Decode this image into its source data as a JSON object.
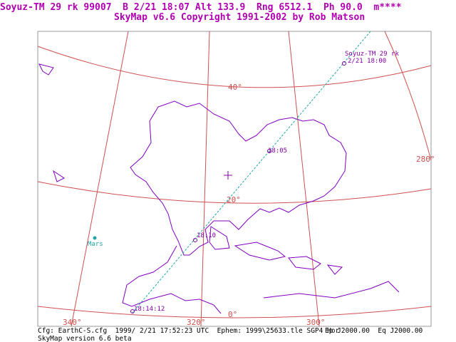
{
  "header": {
    "lines": [
      "Soyuz-TM 29 rk 99007  B 2/21 18:07 Alt 133.9  Rng 6512.1  Ph 90.0  m****",
      "SkyMap v6.6 Copyright 1991-2002 by Rob Matson"
    ]
  },
  "map": {
    "track_labels": [
      "Soyuz-TM 29 rk",
      "2/21 18:00",
      "18:05",
      "18:10",
      "18:14:12"
    ],
    "planet_label": "Mars",
    "grid_labels": [
      "40°",
      "20°",
      "0°",
      "280°",
      "340°",
      "320°",
      "300°"
    ]
  },
  "footer": {
    "config": "Cfg: EarthC-S.cfg  1999/ 2/21 17:52:23 UTC  Ephem: 1999\\25633.tle SGP4 Hor",
    "epoch": "Ep J2000.00  Eq J2000.00",
    "version": "SkyMap version 6.6 beta"
  }
}
